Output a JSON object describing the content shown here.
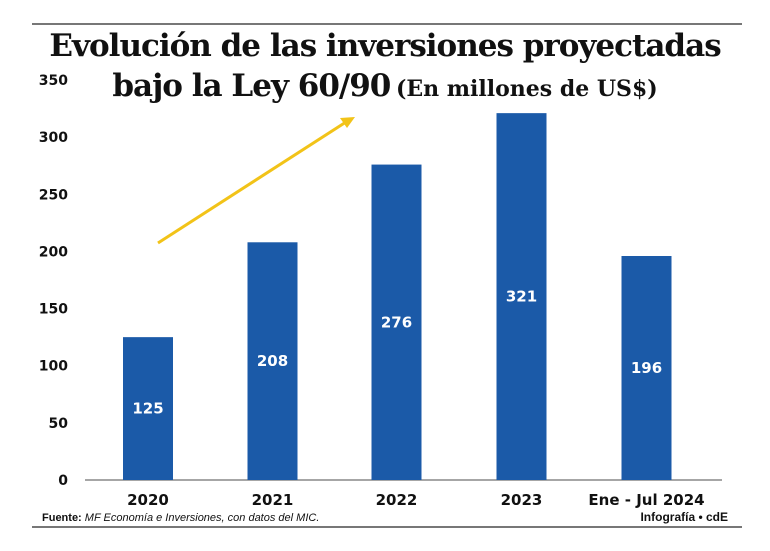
{
  "chart_data": {
    "type": "bar",
    "title": "Evolución de las inversiones proyectadas",
    "title_line2": "bajo la Ley 60/90",
    "subtitle": "(En millones de US$)",
    "categories": [
      "2020",
      "2021",
      "2022",
      "2023",
      "Ene - Jul 2024"
    ],
    "values": [
      125,
      208,
      276,
      321,
      196
    ],
    "ylim": [
      0,
      350
    ],
    "yticks": [
      0,
      50,
      100,
      150,
      200,
      250,
      300,
      350
    ],
    "grid": false,
    "legend": "none",
    "annotation": "yellow upward arrow",
    "colors": {
      "bar": "#1b5aa8",
      "arrow": "#f2c318",
      "label": "#ffffff"
    }
  },
  "footer": {
    "source_label": "Fuente:",
    "source_text": "MF Economía e Inversiones, con datos del MIC.",
    "credit": "Infografía • cdE"
  }
}
